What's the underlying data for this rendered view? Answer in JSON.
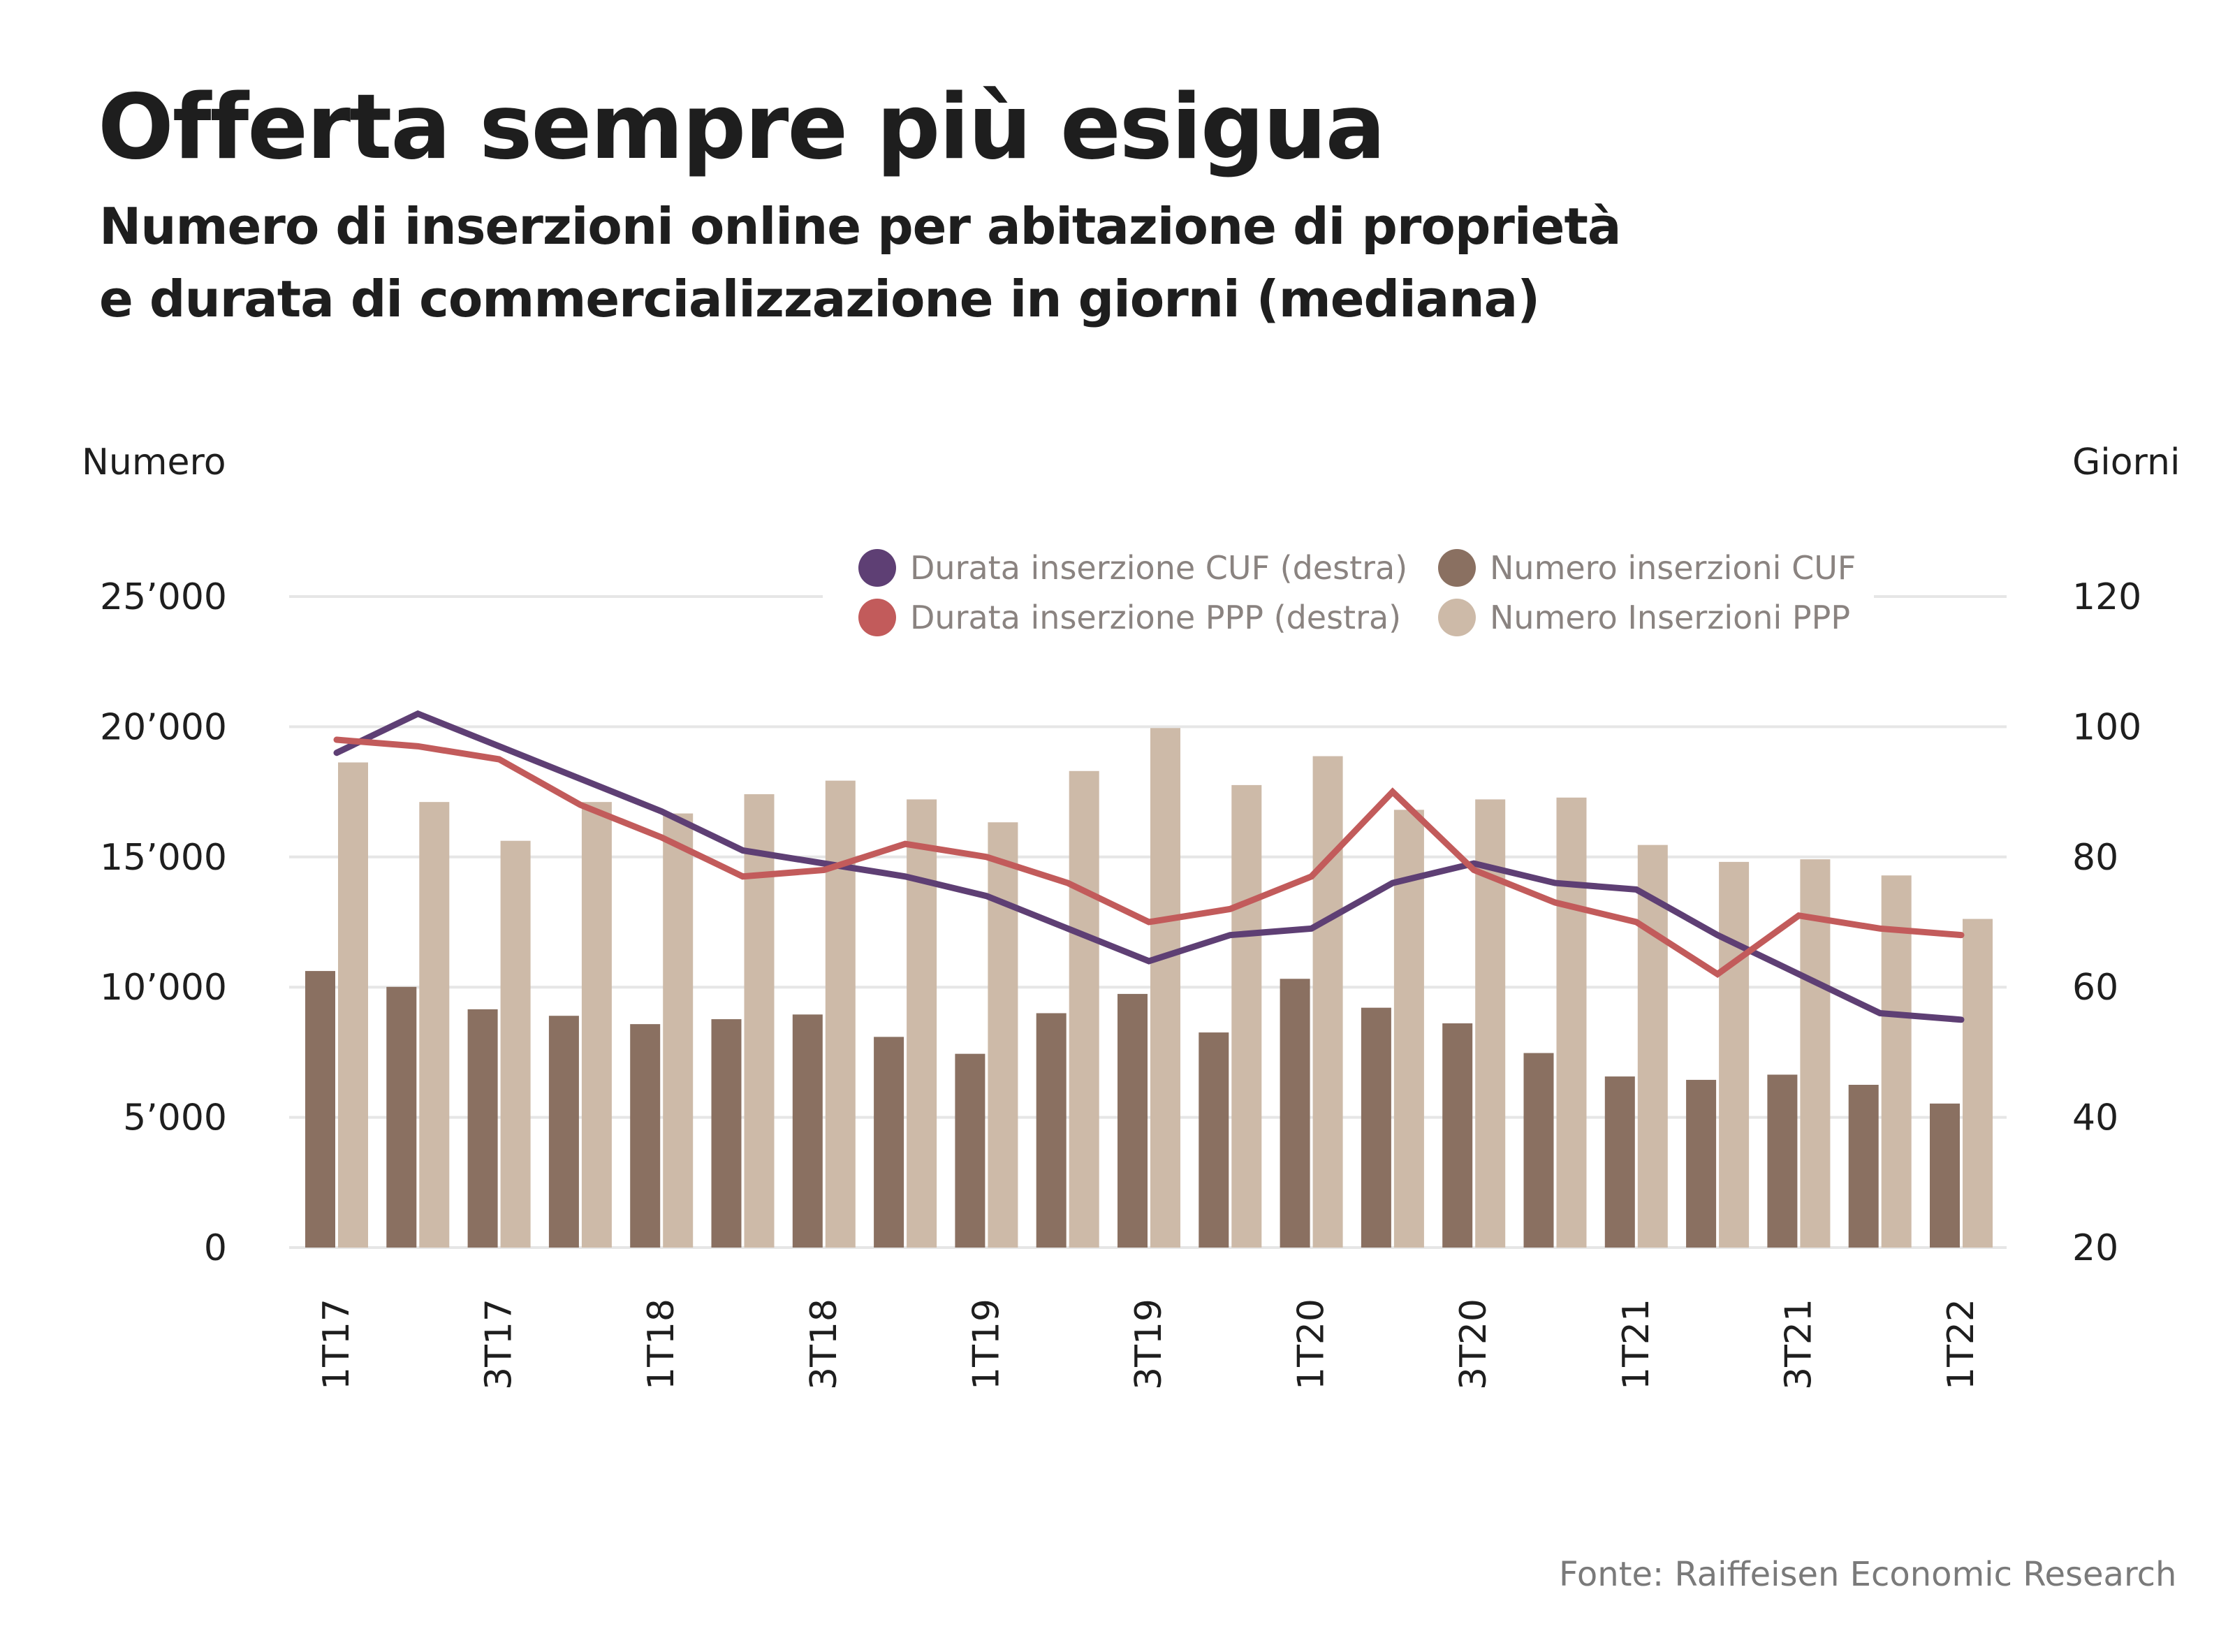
{
  "header": {
    "title": "Offerta sempre più esigua",
    "subtitle_line1": "Numero di inserzioni online per abitazione di proprietà",
    "subtitle_line2": "e durata di commercializzazione in giorni (mediana)"
  },
  "footer": {
    "source": "Fonte: Raiffeisen Economic Research"
  },
  "colors": {
    "numero_cuf": "#8a7061",
    "numero_ppp": "#cdbaa8",
    "durata_cuf": "#5e3f74",
    "durata_ppp": "#c25b5b",
    "grid": "#e6e6e6"
  },
  "chart_data": {
    "type": "bar",
    "title": "Offerta sempre più esigua",
    "subtitle": "Numero di inserzioni online per abitazione di proprietà e durata di commercializzazione in giorni (mediana)",
    "categories": [
      "1T17",
      "2T17",
      "3T17",
      "4T17",
      "1T18",
      "2T18",
      "3T18",
      "4T18",
      "1T19",
      "2T19",
      "3T19",
      "4T19",
      "1T20",
      "2T20",
      "3T20",
      "4T20",
      "1T21",
      "2T21",
      "3T21",
      "4T21",
      "1T22"
    ],
    "x_tick_labels": [
      "1T17",
      "3T17",
      "1T18",
      "3T18",
      "1T19",
      "3T19",
      "1T20",
      "3T20",
      "1T21",
      "3T21",
      "1T22"
    ],
    "ylabel": "Numero",
    "ylabel_right": "Giorni",
    "ylim": [
      0,
      25000
    ],
    "ylim_right": [
      20,
      120
    ],
    "y_ticks": [
      "0",
      "5’000",
      "10’000",
      "15’000",
      "20’000",
      "25’000"
    ],
    "y_ticks_right": [
      "20",
      "40",
      "60",
      "80",
      "100",
      "120"
    ],
    "grid": true,
    "legend_position": "top-center",
    "series": [
      {
        "name": "Numero inserzioni CUF",
        "type": "bar",
        "axis": "left",
        "color": "#8a7061",
        "values": [
          10620,
          10010,
          9150,
          8900,
          8580,
          8770,
          8950,
          8090,
          7440,
          9000,
          9740,
          8260,
          10320,
          9210,
          8610,
          7470,
          6570,
          6440,
          6640,
          6250,
          5530
        ]
      },
      {
        "name": "Numero Inserzioni PPP",
        "type": "bar",
        "axis": "left",
        "color": "#cdbaa8",
        "values": [
          18630,
          17110,
          15620,
          17110,
          16670,
          17410,
          17930,
          17210,
          16330,
          18300,
          19950,
          17760,
          18870,
          16810,
          17210,
          17280,
          15460,
          14810,
          14910,
          14290,
          12620
        ]
      },
      {
        "name": "Durata inserzione CUF (destra)",
        "type": "line",
        "axis": "right",
        "color": "#5e3f74",
        "values": [
          96,
          102,
          97,
          92,
          87,
          81,
          79,
          77,
          74,
          69,
          64,
          68,
          69,
          76,
          79,
          76,
          75,
          68,
          62,
          56,
          55
        ]
      },
      {
        "name": "Durata inserzione PPP (destra)",
        "type": "line",
        "axis": "right",
        "color": "#c25b5b",
        "values": [
          98,
          97,
          95,
          88,
          83,
          77,
          78,
          82,
          80,
          76,
          70,
          72,
          77,
          90,
          78,
          73,
          70,
          62,
          71,
          69,
          68
        ]
      }
    ],
    "legend": [
      {
        "label": "Durata inserzione CUF (destra)",
        "color": "#5e3f74"
      },
      {
        "label": "Numero inserzioni CUF",
        "color": "#8a7061"
      },
      {
        "label": "Durata inserzione PPP (destra)",
        "color": "#c25b5b"
      },
      {
        "label": "Numero Inserzioni PPP",
        "color": "#cdbaa8"
      }
    ]
  }
}
